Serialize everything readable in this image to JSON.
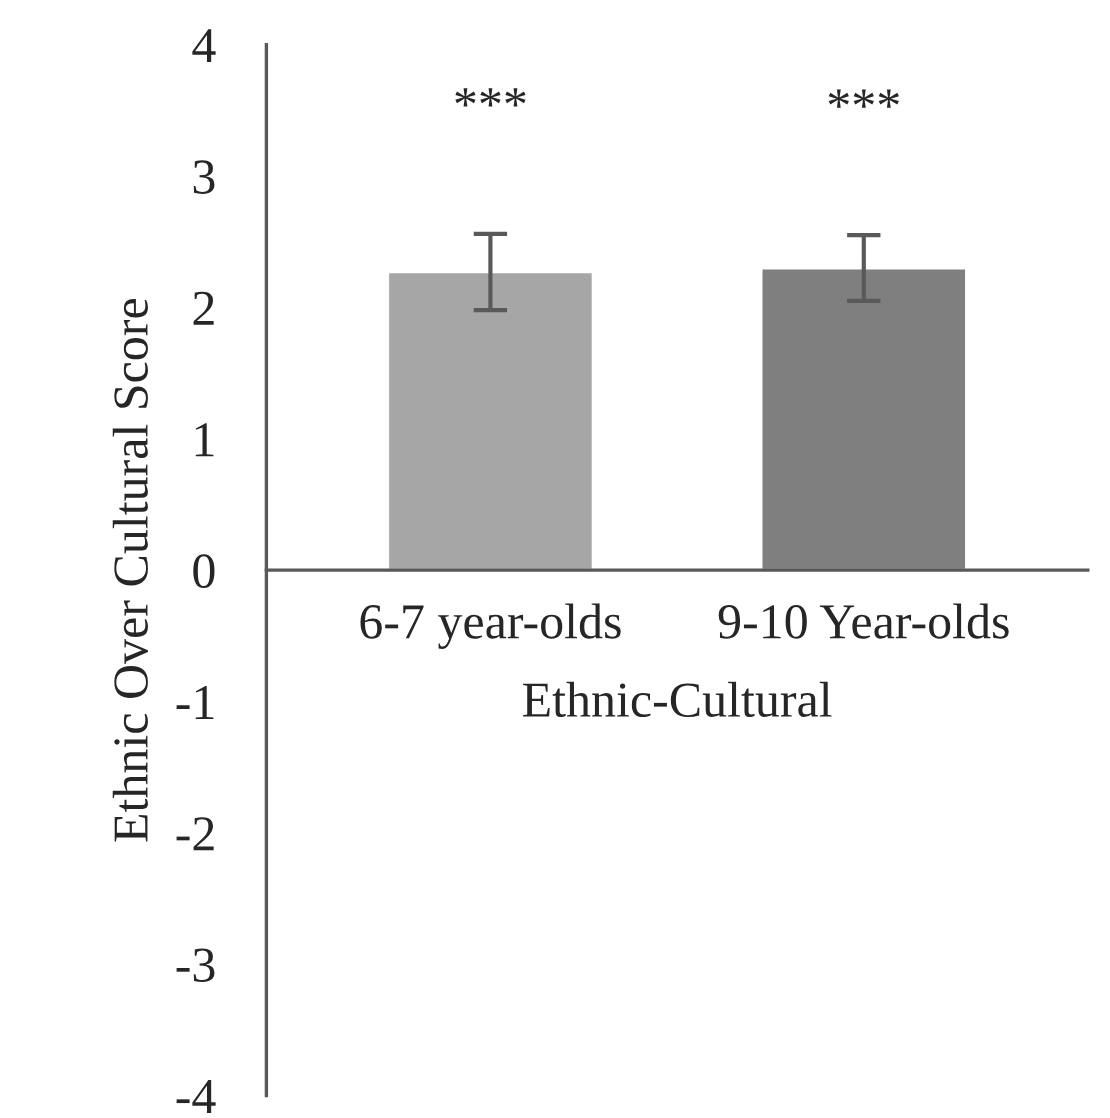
{
  "chart_data": {
    "type": "bar",
    "xlabel": "Ethnic-Cultural",
    "ylabel": "Ethnic Over Cultural Score",
    "categories": [
      "6-7 year-olds",
      "9-10 Year-olds"
    ],
    "values": [
      2.27,
      2.3
    ],
    "colors": [
      "#a6a6a6",
      "#7f7f7f"
    ],
    "errors": [
      0.29,
      0.25
    ],
    "ylim": [
      -4,
      4
    ],
    "yticks": [
      -4,
      -3,
      -2,
      -1,
      0,
      1,
      2,
      3,
      4
    ],
    "grid": false,
    "legend": false,
    "annotations": [
      "***",
      "***"
    ]
  }
}
